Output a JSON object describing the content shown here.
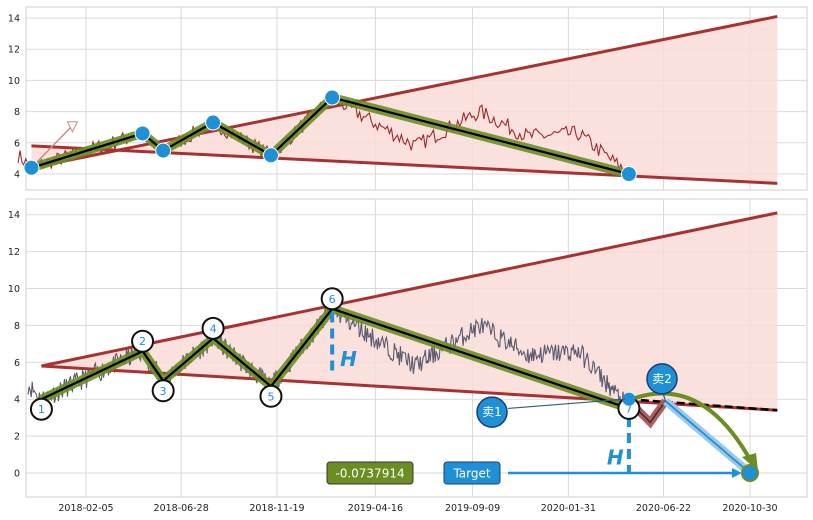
{
  "chart_data": [
    {
      "type": "line",
      "panel": "top",
      "ylim": [
        3,
        15
      ],
      "y_ticks": [
        "4",
        "6",
        "8",
        "10",
        "12",
        "14"
      ],
      "grid": true,
      "price_color": "#a0282a",
      "pattern_color": "#6b8e23",
      "pivot_color": "#1f8fd6",
      "trend_color": "#a83232",
      "fill_color": "#f9dcd7",
      "pivots": [
        {
          "x": "2017-11-15",
          "y": 4.4
        },
        {
          "x": "2018-05-01",
          "y": 6.6
        },
        {
          "x": "2018-06-01",
          "y": 5.5
        },
        {
          "x": "2018-08-15",
          "y": 7.3
        },
        {
          "x": "2018-11-10",
          "y": 5.2
        },
        {
          "x": "2019-02-10",
          "y": 8.9
        },
        {
          "x": "2020-05-01",
          "y": 4.0
        }
      ],
      "upper_trendline": [
        {
          "x": "2017-11-15",
          "y": 4.4
        },
        {
          "x": "2020-12-10",
          "y": 14.1
        }
      ],
      "lower_trendline": [
        {
          "x": "2017-11-15",
          "y": 5.8
        },
        {
          "x": "2020-12-10",
          "y": 3.4
        }
      ]
    },
    {
      "type": "line",
      "panel": "bottom",
      "ylim": [
        -1.5,
        15
      ],
      "y_ticks": [
        "0",
        "2",
        "4",
        "6",
        "8",
        "10",
        "12",
        "14"
      ],
      "x_ticks": [
        "2018-02-05",
        "2018-06-28",
        "2018-11-19",
        "2019-04-16",
        "2019-09-09",
        "2020-01-31",
        "2020-06-22",
        "2020-10-30"
      ],
      "grid": true,
      "price_color": "#5a5a6e",
      "pivots": [
        {
          "label": "1",
          "x": "2017-11-30",
          "y": 4.0
        },
        {
          "label": "2",
          "x": "2018-05-01",
          "y": 6.6
        },
        {
          "label": "3",
          "x": "2018-06-01",
          "y": 5.0
        },
        {
          "label": "4",
          "x": "2018-08-15",
          "y": 7.3
        },
        {
          "label": "5",
          "x": "2018-11-10",
          "y": 4.7
        },
        {
          "label": "6",
          "x": "2019-02-10",
          "y": 8.9
        },
        {
          "label": "7",
          "x": "2020-05-01",
          "y": 3.5
        }
      ],
      "upper_trendline": [
        {
          "x": "2017-11-30",
          "y": 5.8
        },
        {
          "x": "2020-12-10",
          "y": 14.1
        }
      ],
      "lower_trendline": [
        {
          "x": "2017-11-30",
          "y": 5.8
        },
        {
          "x": "2020-12-10",
          "y": 3.4
        }
      ],
      "height_marker": {
        "label": "H",
        "x": "2019-02-10",
        "y_top": 8.7,
        "y_bottom": 5.3
      },
      "target_height_marker": {
        "label": "H",
        "x": "2020-05-01",
        "y_top": 3.9,
        "y_bottom": 0.0
      },
      "sell_signals": [
        {
          "label": "卖1",
          "x": "2020-05-01",
          "y": 4.0
        },
        {
          "label": "卖2",
          "x": "2020-06-25",
          "y": 3.9
        }
      ],
      "target_point": {
        "x": "2020-10-30",
        "y": 0.0
      },
      "target_label": "Target",
      "value_badge": "-0.0737914"
    }
  ]
}
